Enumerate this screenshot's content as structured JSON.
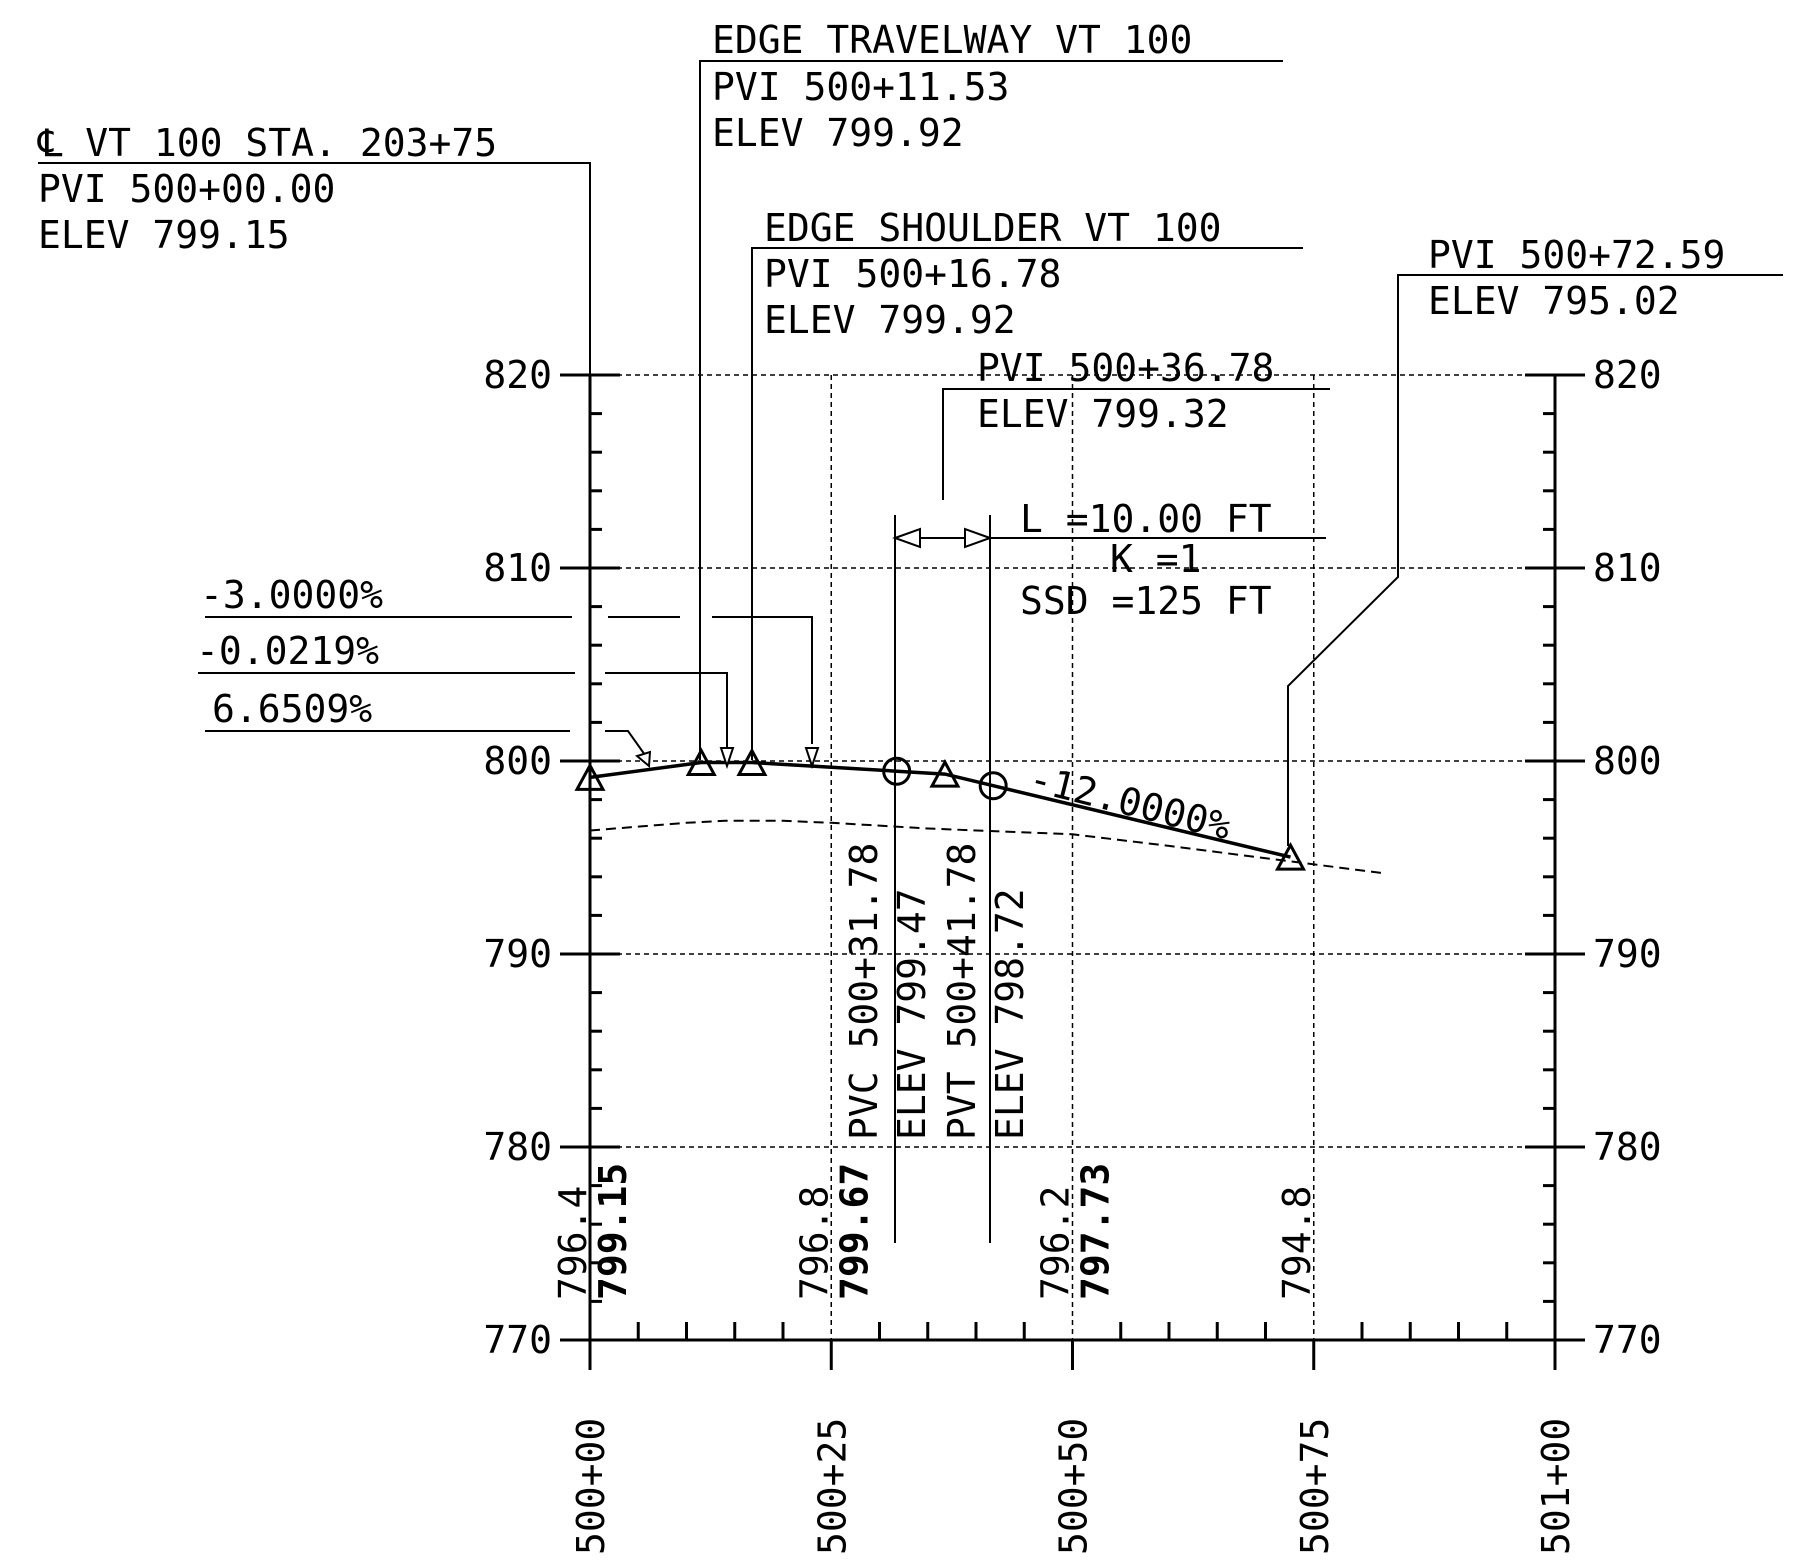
{
  "labels": {
    "cl_title": "℄ VT 100 STA. 203+75",
    "cl_pvi": "PVI 500+00.00",
    "cl_elev": "ELEV 799.15",
    "etw_title": "EDGE TRAVELWAY VT 100",
    "etw_pvi": "PVI 500+11.53",
    "etw_elev": "ELEV 799.92",
    "esh_title": "EDGE SHOULDER VT 100",
    "esh_pvi": "PVI 500+16.78",
    "esh_elev": "ELEV 799.92",
    "mid_pvi": "PVI 500+36.78",
    "mid_elev": "ELEV 799.32",
    "end_pvi": "PVI 500+72.59",
    "end_elev": "ELEV 795.02",
    "curve_l": "L =10.00 FT",
    "curve_k": "K =1",
    "curve_ssd": "SSD =125 FT",
    "grade_1": "-3.0000%",
    "grade_2": "-0.0219%",
    "grade_3": "6.6509%",
    "grade_4": "-12.0000%",
    "pvc_sta": "PVC 500+31.78",
    "pvc_elev": "ELEV 799.47",
    "pvt_sta": "PVT 500+41.78",
    "pvt_elev": "ELEV 798.72"
  },
  "chart_data": {
    "type": "line",
    "xlabel": "",
    "ylabel": "",
    "xlim": [
      0,
      100
    ],
    "ylim": [
      770,
      820
    ],
    "y_ticks": [
      770,
      780,
      790,
      800,
      810,
      820
    ],
    "y_tick_labels": [
      "770",
      "780",
      "790",
      "800",
      "810",
      "820"
    ],
    "x_ticks": [
      0,
      25,
      50,
      75,
      100
    ],
    "x_tick_labels": [
      "500+00",
      "500+25",
      "500+50",
      "500+75",
      "501+00"
    ],
    "grid": true,
    "series": [
      {
        "role": "proposed profile",
        "style": "solid",
        "x": [
          0,
          11.53,
          16.78,
          31.78,
          36.78,
          41.78,
          72.59
        ],
        "y": [
          799.15,
          799.92,
          799.92,
          799.47,
          799.32,
          798.72,
          795.02
        ]
      },
      {
        "role": "existing ground",
        "style": "dashed",
        "x": [
          0,
          10,
          14,
          20,
          25,
          35,
          50,
          60,
          72.59,
          82
        ],
        "y": [
          796.4,
          796.8,
          796.9,
          796.9,
          796.8,
          796.5,
          796.2,
          795.6,
          794.8,
          794.2
        ]
      }
    ],
    "pvi_markers": [
      {
        "x": 0,
        "y": 799.15
      },
      {
        "x": 11.53,
        "y": 799.92
      },
      {
        "x": 16.78,
        "y": 799.92
      },
      {
        "x": 36.78,
        "y": 799.32
      },
      {
        "x": 72.59,
        "y": 795.02
      }
    ],
    "curve_points": [
      {
        "x": 31.78,
        "y": 799.47
      },
      {
        "x": 41.78,
        "y": 798.72
      }
    ],
    "bottom_values": [
      {
        "x": 0,
        "existing": "796.4",
        "proposed": "799.15"
      },
      {
        "x": 25,
        "existing": "796.8",
        "proposed": "799.67"
      },
      {
        "x": 50,
        "existing": "796.2",
        "proposed": "797.73"
      },
      {
        "x": 75,
        "existing": "794.8",
        "proposed": ""
      }
    ]
  }
}
